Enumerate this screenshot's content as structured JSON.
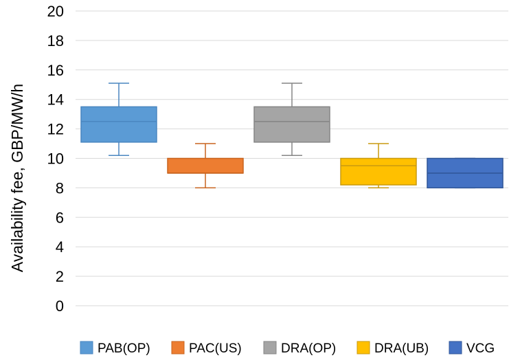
{
  "chart_data": {
    "type": "box",
    "title": "",
    "xlabel": "",
    "ylabel": "Availability fee, GBP/MW/h",
    "ylim": [
      0,
      20
    ],
    "yticks": [
      0,
      2,
      4,
      6,
      8,
      10,
      12,
      14,
      16,
      18,
      20
    ],
    "grid": true,
    "legend_position": "bottom",
    "series": [
      {
        "name": "PAB(OP)",
        "color": "#5b9bd5",
        "stroke": "#4a86c0",
        "min": 10.2,
        "q1": 11.1,
        "median": 12.5,
        "q3": 13.5,
        "max": 15.1
      },
      {
        "name": "PAC(US)",
        "color": "#ed7d31",
        "stroke": "#c8641f",
        "min": 8.0,
        "q1": 9.0,
        "median": 9.0,
        "q3": 10.0,
        "max": 11.0
      },
      {
        "name": "DRA(OP)",
        "color": "#a5a5a5",
        "stroke": "#858585",
        "min": 10.2,
        "q1": 11.1,
        "median": 12.5,
        "q3": 13.5,
        "max": 15.1
      },
      {
        "name": "DRA(UB)",
        "color": "#ffc000",
        "stroke": "#c89a10",
        "min": 8.0,
        "q1": 8.2,
        "median": 9.5,
        "q3": 10.0,
        "max": 11.0
      },
      {
        "name": "VCG",
        "color": "#4472c4",
        "stroke": "#2f5597",
        "min": 8.0,
        "q1": 8.0,
        "median": 9.0,
        "q3": 10.0,
        "max": 10.0
      }
    ]
  }
}
